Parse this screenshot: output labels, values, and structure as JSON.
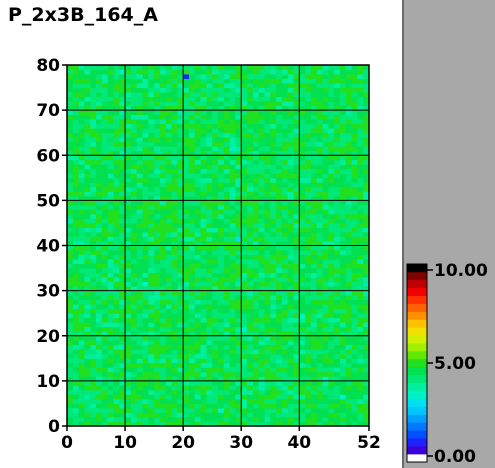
{
  "chart_data": {
    "type": "heatmap",
    "title": "P_2x3B_164_A",
    "xlabel": "",
    "ylabel": "",
    "xlim": [
      0,
      52
    ],
    "ylim": [
      0,
      80
    ],
    "x_ticks": [
      0,
      10,
      20,
      30,
      40,
      52
    ],
    "x_tick_labels": [
      "0",
      "10",
      "20",
      "30",
      "40",
      "52"
    ],
    "y_ticks": [
      0,
      10,
      20,
      30,
      40,
      50,
      60,
      70,
      80
    ],
    "y_tick_labels": [
      "0",
      "10",
      "20",
      "30",
      "40",
      "50",
      "60",
      "70",
      "80"
    ],
    "grid": true,
    "columns": 52,
    "rows": 80,
    "value_range": [
      0,
      10
    ],
    "typical_value": 4.5,
    "low_outliers": [
      {
        "x": 20,
        "y": 77,
        "value": 0.8
      },
      {
        "x": 28,
        "y": 61,
        "value": 3.2
      },
      {
        "x": 29,
        "y": 41,
        "value": 3.0
      },
      {
        "x": 30,
        "y": 21,
        "value": 3.1
      },
      {
        "x": 13,
        "y": 31,
        "value": 3.3
      },
      {
        "x": 26,
        "y": 3,
        "value": 3.2
      },
      {
        "x": 44,
        "y": 10,
        "value": 3.1
      },
      {
        "x": 47,
        "y": 6,
        "value": 3.3
      },
      {
        "x": 9,
        "y": 78,
        "value": 3.4
      },
      {
        "x": 40,
        "y": 24,
        "value": 3.3
      }
    ],
    "colorbar": {
      "min": 0,
      "max": 10,
      "tick_labels": [
        "10.00",
        "5.00",
        "0.00"
      ],
      "tick_values": [
        10,
        5,
        0
      ],
      "colors_low_to_high": [
        "#ffffff",
        "#3c00d8",
        "#2020ff",
        "#0050ff",
        "#0078ff",
        "#00a0ff",
        "#00c8ff",
        "#00e0f0",
        "#00f0c8",
        "#00f0a0",
        "#00e878",
        "#00e050",
        "#20e020",
        "#60e800",
        "#a0f000",
        "#d0f000",
        "#f0e000",
        "#ffc000",
        "#ff9000",
        "#ff6000",
        "#ff3000",
        "#f00000",
        "#c00000",
        "#800000",
        "#000000"
      ]
    }
  }
}
